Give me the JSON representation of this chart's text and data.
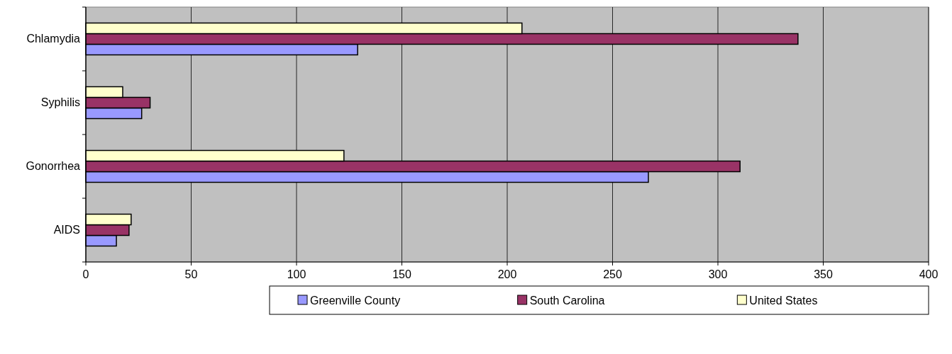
{
  "chart_data": {
    "type": "bar",
    "orientation": "horizontal",
    "categories": [
      "Chlamydia",
      "Syphilis",
      "Gonorrhea",
      "AIDS"
    ],
    "series": [
      {
        "name": "Greenville County",
        "color": "#9999ff",
        "values": [
          129,
          26.5,
          267,
          14.5
        ]
      },
      {
        "name": "South Carolina",
        "color": "#993366",
        "values": [
          338,
          30.5,
          310.5,
          20.5
        ]
      },
      {
        "name": "United States",
        "color": "#ffffcc",
        "values": [
          207,
          17.5,
          122.5,
          21.5
        ]
      }
    ],
    "xlim": [
      0,
      400
    ],
    "xticks": [
      0,
      50,
      100,
      150,
      200,
      250,
      300,
      350,
      400
    ],
    "grid": "x",
    "legend": "bottom"
  }
}
